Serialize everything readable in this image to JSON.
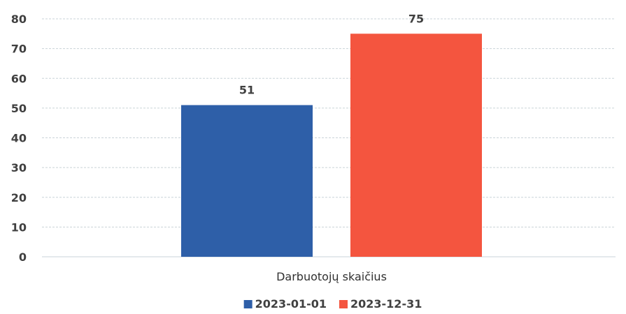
{
  "chart_data": {
    "type": "bar",
    "title": "",
    "xlabel": "",
    "ylabel": "",
    "categories": [
      "Darbuotojų skaičius"
    ],
    "series": [
      {
        "name": "2023-01-01",
        "values": [
          51
        ],
        "color": "#2e5fa8"
      },
      {
        "name": "2023-12-31",
        "values": [
          75
        ],
        "color": "#f4553f"
      }
    ],
    "ylim": [
      0,
      80
    ],
    "yticks": [
      0,
      10,
      20,
      30,
      40,
      50,
      60,
      70,
      80
    ],
    "grid": true,
    "legend_position": "bottom-center",
    "data_labels": true
  }
}
